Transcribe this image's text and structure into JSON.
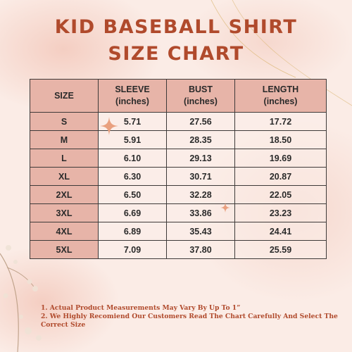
{
  "title": {
    "line1": "KID BASEBALL SHIRT",
    "line2": "SIZE CHART"
  },
  "table": {
    "headers": [
      {
        "line1": "SIZE",
        "line2": ""
      },
      {
        "line1": "SLEEVE",
        "line2": "(inches)"
      },
      {
        "line1": "BUST",
        "line2": "(inches)"
      },
      {
        "line1": "LENGTH",
        "line2": "(inches)"
      }
    ],
    "rows": [
      [
        "S",
        "5.71",
        "27.56",
        "17.72"
      ],
      [
        "M",
        "5.91",
        "28.35",
        "18.50"
      ],
      [
        "L",
        "6.10",
        "29.13",
        "19.69"
      ],
      [
        "XL",
        "6.30",
        "30.71",
        "20.87"
      ],
      [
        "2XL",
        "6.50",
        "32.28",
        "22.05"
      ],
      [
        "3XL",
        "6.69",
        "33.86",
        "23.23"
      ],
      [
        "4XL",
        "6.89",
        "35.43",
        "24.41"
      ],
      [
        "5XL",
        "7.09",
        "37.80",
        "25.59"
      ]
    ]
  },
  "notes": {
    "line1": "1. Actual Product Measurements May Vary By Up To 1”",
    "line2": "2. We Highly Recomiend Our Customers Read The Chart Carefully And Select The",
    "line3": "Correct Size"
  },
  "colors": {
    "title": "#b04a2c",
    "header_fill": "#e7b4a8",
    "border": "#3e3a39",
    "background": "#fbece6"
  }
}
